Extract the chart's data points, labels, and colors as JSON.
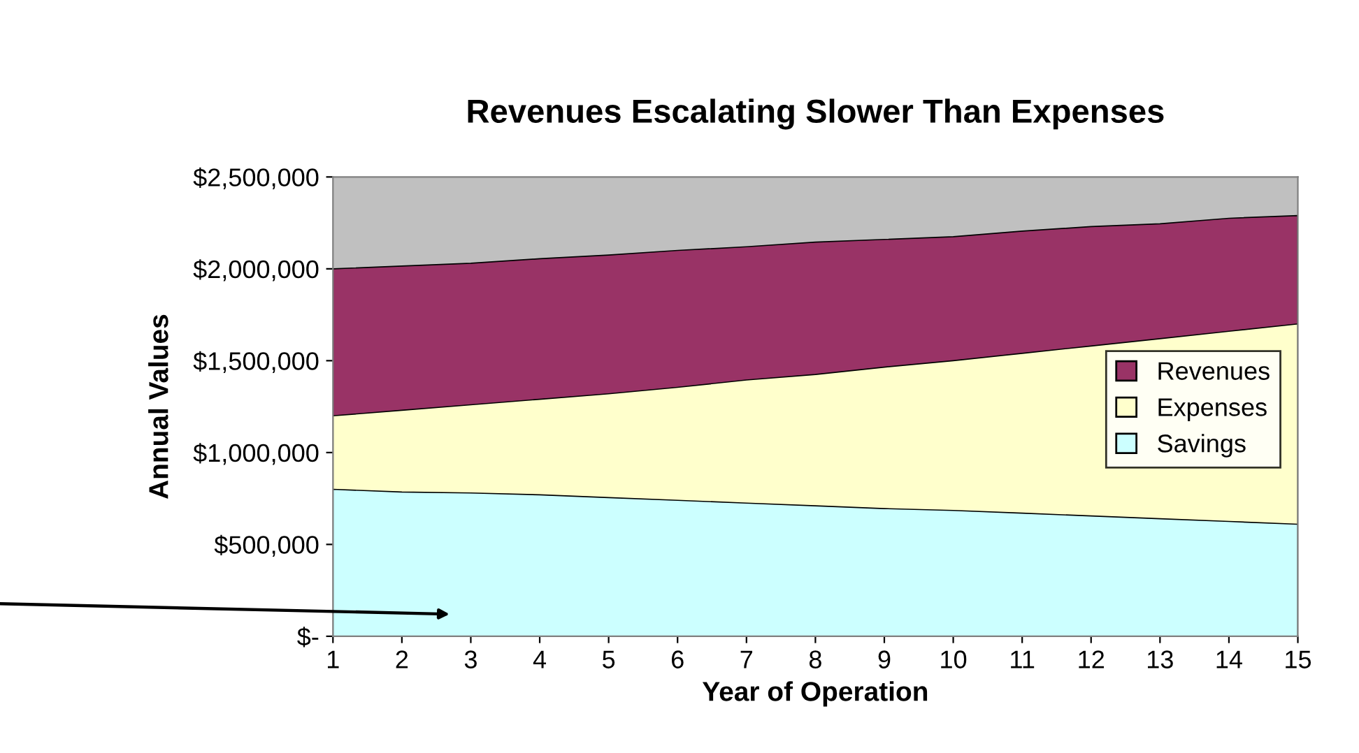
{
  "chart_data": {
    "type": "area",
    "title": "Revenues Escalating Slower Than Expenses",
    "xlabel": "Year of Operation",
    "ylabel": "Annual Values",
    "categories": [
      "1",
      "2",
      "3",
      "4",
      "5",
      "6",
      "7",
      "8",
      "9",
      "10",
      "11",
      "12",
      "13",
      "14",
      "15"
    ],
    "series": [
      {
        "name": "Revenues",
        "color": "#993366",
        "values": [
          2000000,
          2015000,
          2030000,
          2055000,
          2075000,
          2100000,
          2120000,
          2145000,
          2160000,
          2175000,
          2205000,
          2230000,
          2245000,
          2275000,
          2290000
        ]
      },
      {
        "name": "Expenses",
        "color": "#ffffcc",
        "values": [
          1200000,
          1230000,
          1260000,
          1290000,
          1320000,
          1355000,
          1395000,
          1425000,
          1465000,
          1500000,
          1540000,
          1580000,
          1620000,
          1660000,
          1700000
        ]
      },
      {
        "name": "Savings",
        "color": "#ccffff",
        "values": [
          800000,
          785000,
          780000,
          770000,
          755000,
          740000,
          725000,
          710000,
          695000,
          685000,
          670000,
          655000,
          640000,
          625000,
          610000
        ]
      }
    ],
    "ylim": [
      0,
      2500000
    ],
    "yticks": [
      {
        "value": 0,
        "label": "$-"
      },
      {
        "value": 500000,
        "label": "$500,000"
      },
      {
        "value": 1000000,
        "label": "$1,000,000"
      },
      {
        "value": 1500000,
        "label": "$1,500,000"
      },
      {
        "value": 2000000,
        "label": "$2,000,000"
      },
      {
        "value": 2500000,
        "label": "$2,500,000"
      }
    ],
    "grid": false,
    "legend": "right"
  }
}
